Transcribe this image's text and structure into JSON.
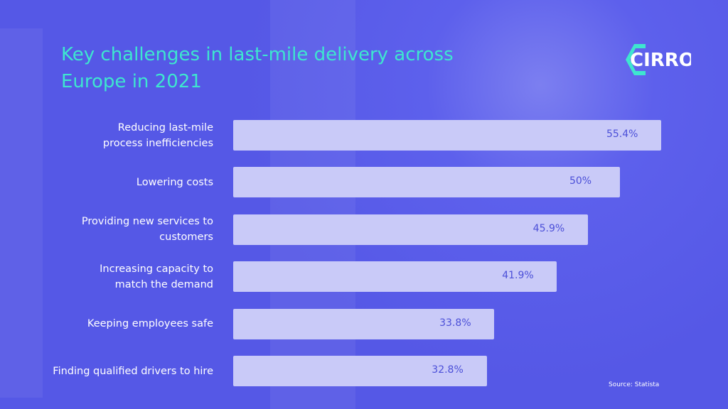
{
  "logo_text": "CIRRO",
  "source": "Source: Statista",
  "chart_data": {
    "type": "bar",
    "orientation": "horizontal",
    "title": "Key challenges in last-mile delivery across\nEurope in 2021",
    "categories": [
      "Reducing last-mile\nprocess inefficiencies",
      "Lowering costs",
      "Providing new services to\ncustomers",
      "Increasing capacity to\nmatch the demand",
      "Keeping employees safe",
      "Finding qualified drivers to hire"
    ],
    "values": [
      55.4,
      50,
      45.9,
      41.9,
      33.8,
      32.8
    ],
    "value_labels": [
      "55.4%",
      "50%",
      "45.9%",
      "41.9%",
      "33.8%",
      "32.8%"
    ],
    "color": "#c9caf8",
    "label_color": "#4b4fd8"
  }
}
